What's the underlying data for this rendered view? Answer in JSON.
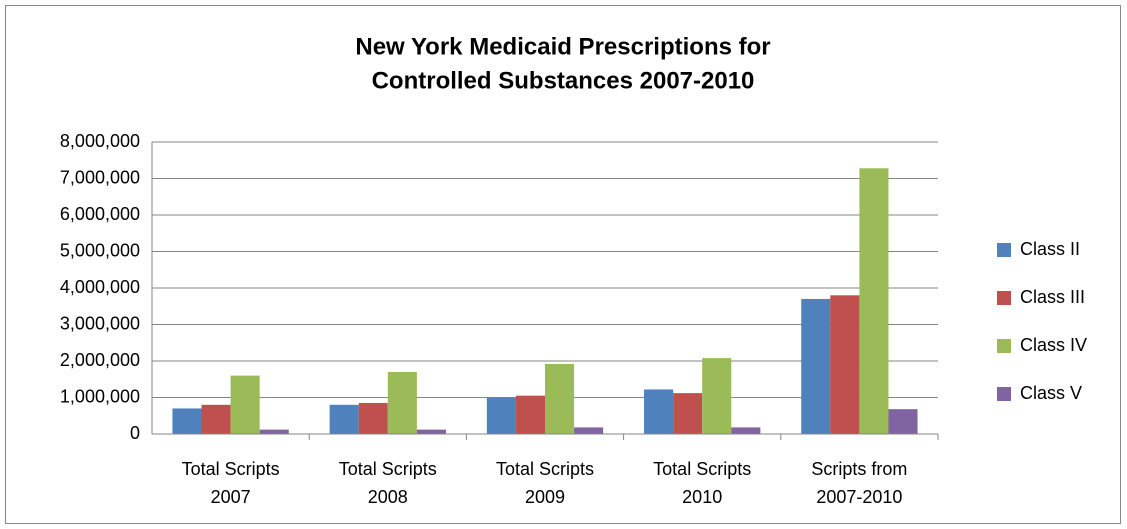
{
  "chart_data": {
    "type": "bar",
    "title": [
      "New York Medicaid Prescriptions for",
      "Controlled Substances 2007-2010"
    ],
    "categories": [
      [
        "Total Scripts",
        "2007"
      ],
      [
        "Total Scripts",
        "2008"
      ],
      [
        "Total Scripts",
        "2009"
      ],
      [
        "Total Scripts",
        "2010"
      ],
      [
        "Scripts from",
        "2007-2010"
      ]
    ],
    "series": [
      {
        "name": "Class II",
        "color": "#4f81bd",
        "values": [
          700000,
          800000,
          1000000,
          1220000,
          3700000
        ]
      },
      {
        "name": "Class III",
        "color": "#c0504d",
        "values": [
          800000,
          850000,
          1050000,
          1120000,
          3800000
        ]
      },
      {
        "name": "Class IV",
        "color": "#9bbb59",
        "values": [
          1600000,
          1700000,
          1920000,
          2080000,
          7280000
        ]
      },
      {
        "name": "Class V",
        "color": "#8064a2",
        "values": [
          120000,
          120000,
          180000,
          180000,
          680000
        ]
      }
    ],
    "ylim": [
      0,
      8000000
    ],
    "yticks": [
      0,
      {
        "value": 1000000,
        "label": "1,000,000"
      },
      {
        "value": 2000000,
        "label": "2,000,000"
      },
      {
        "value": 3000000,
        "label": "3,000,000"
      },
      {
        "value": 4000000,
        "label": "4,000,000"
      },
      {
        "value": 5000000,
        "label": "5,000,000"
      },
      {
        "value": 6000000,
        "label": "6,000,000"
      },
      {
        "value": 7000000,
        "label": "7,000,000"
      },
      {
        "value": 8000000,
        "label": "8,000,000"
      }
    ],
    "grid": true,
    "legend": "right"
  }
}
